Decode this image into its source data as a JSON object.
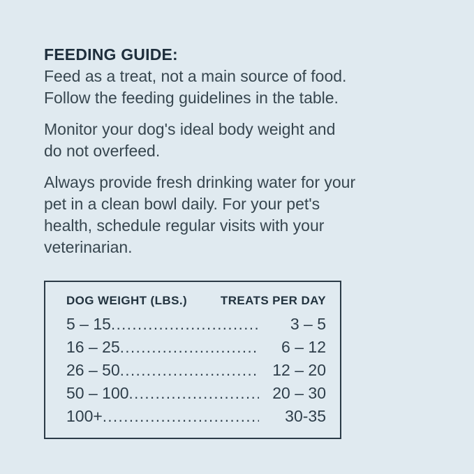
{
  "colors": {
    "background": "#e0eaf0",
    "heading_text": "#1e2e3c",
    "body_text": "#37464f",
    "table_border": "#2b3b47",
    "table_text": "#2e3e4a"
  },
  "heading": "FEEDING GUIDE:",
  "paragraphs": [
    {
      "lines": [
        "Feed as a treat, not a main source of food.",
        "Follow the feeding guidelines in the table."
      ]
    },
    {
      "lines": [
        "Monitor your dog's ideal body weight and",
        "do not overfeed."
      ]
    },
    {
      "lines": [
        "Always provide fresh drinking water for your",
        "pet in a clean bowl daily. For your pet's",
        "health, schedule regular visits with your",
        "veterinarian."
      ]
    }
  ],
  "feeding_table": {
    "type": "table",
    "columns": [
      "DOG WEIGHT (LBS.)",
      "TREATS PER DAY"
    ],
    "rows": [
      {
        "weight": "5 – 15",
        "treats": "3 – 5"
      },
      {
        "weight": "16 – 25",
        "treats": "6 – 12"
      },
      {
        "weight": "26 – 50",
        "treats": "12 – 20"
      },
      {
        "weight": "50 – 100",
        "treats": "20 – 30"
      },
      {
        "weight": "100+",
        "treats": "30-35"
      }
    ]
  }
}
